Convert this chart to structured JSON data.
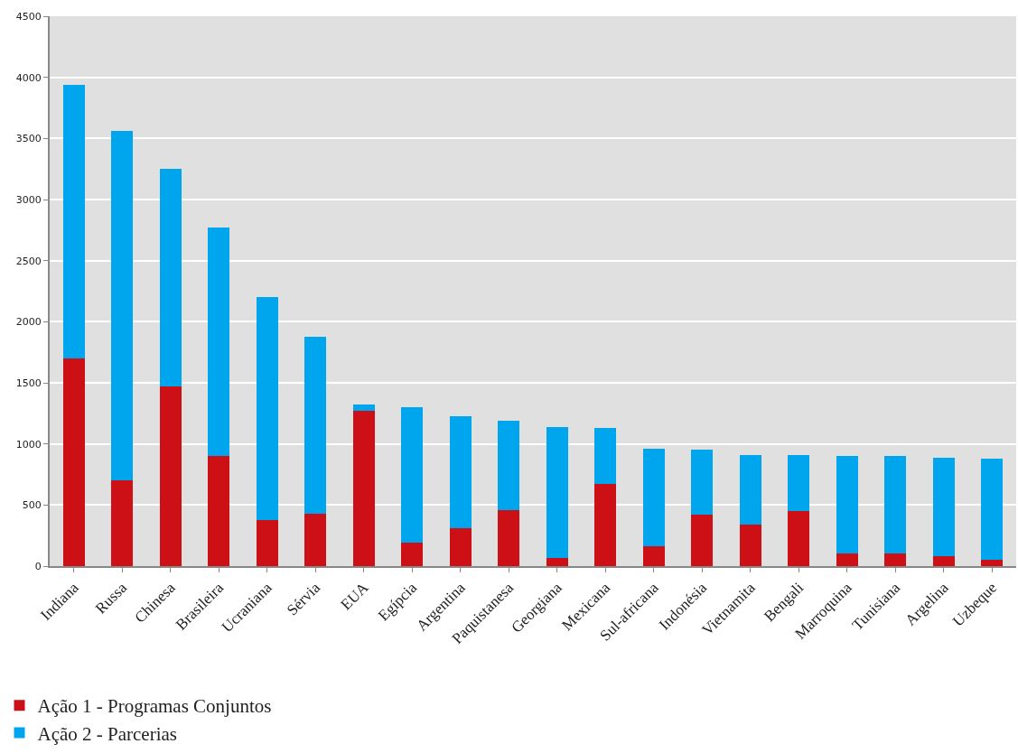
{
  "chart_data": {
    "type": "bar",
    "stacked": true,
    "categories": [
      "Indiana",
      "Russa",
      "Chinesa",
      "Brasileira",
      "Ucraniana",
      "Sérvia",
      "EUA",
      "Egípcia",
      "Argentina",
      "Paquistanesa",
      "Georgiana",
      "Mexicana",
      "Sul-africana",
      "Indonésia",
      "Vietnamita",
      "Bengali",
      "Marroquina",
      "Tunisiana",
      "Argelina",
      "Uzbeque"
    ],
    "series": [
      {
        "name": "Ação 1 - Programas Conjuntos",
        "color": "#cc1016",
        "values": [
          1700,
          700,
          1470,
          900,
          380,
          430,
          1270,
          190,
          310,
          460,
          70,
          670,
          160,
          420,
          340,
          450,
          100,
          100,
          80,
          50
        ]
      },
      {
        "name": "Ação 2 - Parcerias",
        "color": "#00a6ed",
        "values": [
          2240,
          2860,
          1780,
          1870,
          1820,
          1450,
          50,
          1110,
          920,
          730,
          1070,
          460,
          800,
          530,
          570,
          460,
          800,
          800,
          810,
          830
        ]
      }
    ],
    "ylim": [
      0,
      4500
    ],
    "yticks": [
      0,
      500,
      1000,
      1500,
      2000,
      2500,
      3000,
      3500,
      4000,
      4500
    ],
    "grid": "y",
    "legend": "bottom left"
  }
}
